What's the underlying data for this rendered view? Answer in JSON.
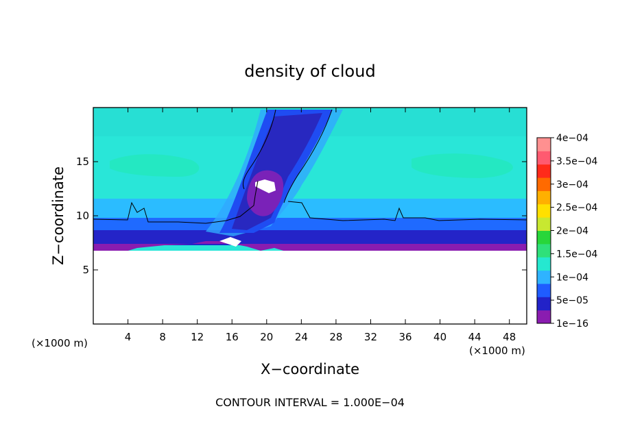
{
  "chart_data": {
    "type": "heatmap",
    "title": "density of cloud",
    "xlabel": "X−coordinate",
    "ylabel": "Z−coordinate",
    "x_unit_left": "(×1000 m)",
    "x_unit_right": "(×1000 m)",
    "footer": "CONTOUR INTERVAL = 1.000E−04",
    "xlim": [
      0,
      50
    ],
    "ylim": [
      0,
      20
    ],
    "x_ticks": [
      4,
      8,
      12,
      16,
      20,
      24,
      28,
      32,
      36,
      40,
      44,
      48
    ],
    "y_ticks": [
      5,
      10,
      15
    ],
    "grid": false,
    "legend": "right",
    "colorbar": {
      "labels": [
        "1e−16",
        "5e−05",
        "1e−04",
        "1.5e−04",
        "2e−04",
        "2.5e−04",
        "3e−04",
        "3.5e−04",
        "4e−04"
      ],
      "values": [
        1e-16,
        5e-05,
        0.0001,
        0.00015,
        0.0002,
        0.00025,
        0.0003,
        0.00035,
        0.0004
      ],
      "colors": [
        "#8a1cb0",
        "#2222c8",
        "#1f5cff",
        "#2fb3ff",
        "#25e8d0",
        "#2fe07a",
        "#28d63a",
        "#c8e830",
        "#ffe000",
        "#ffb000",
        "#ff6a00",
        "#ff2a1a",
        "#ff5a70",
        "#ff9090"
      ]
    },
    "field_colors": {
      "bg": "#29e6d8",
      "upper": "#27ddd4",
      "band": "#24e8c0",
      "mid": "#2bbcff",
      "low": "#1f6aff",
      "base": "#2424c8",
      "bottom": "#8a1cb0",
      "plume_outer": "#1f4cf2",
      "plume_inner": "#2828c0",
      "plume_core": "#7a22b8",
      "plume_edge": "#31a8ff"
    }
  }
}
